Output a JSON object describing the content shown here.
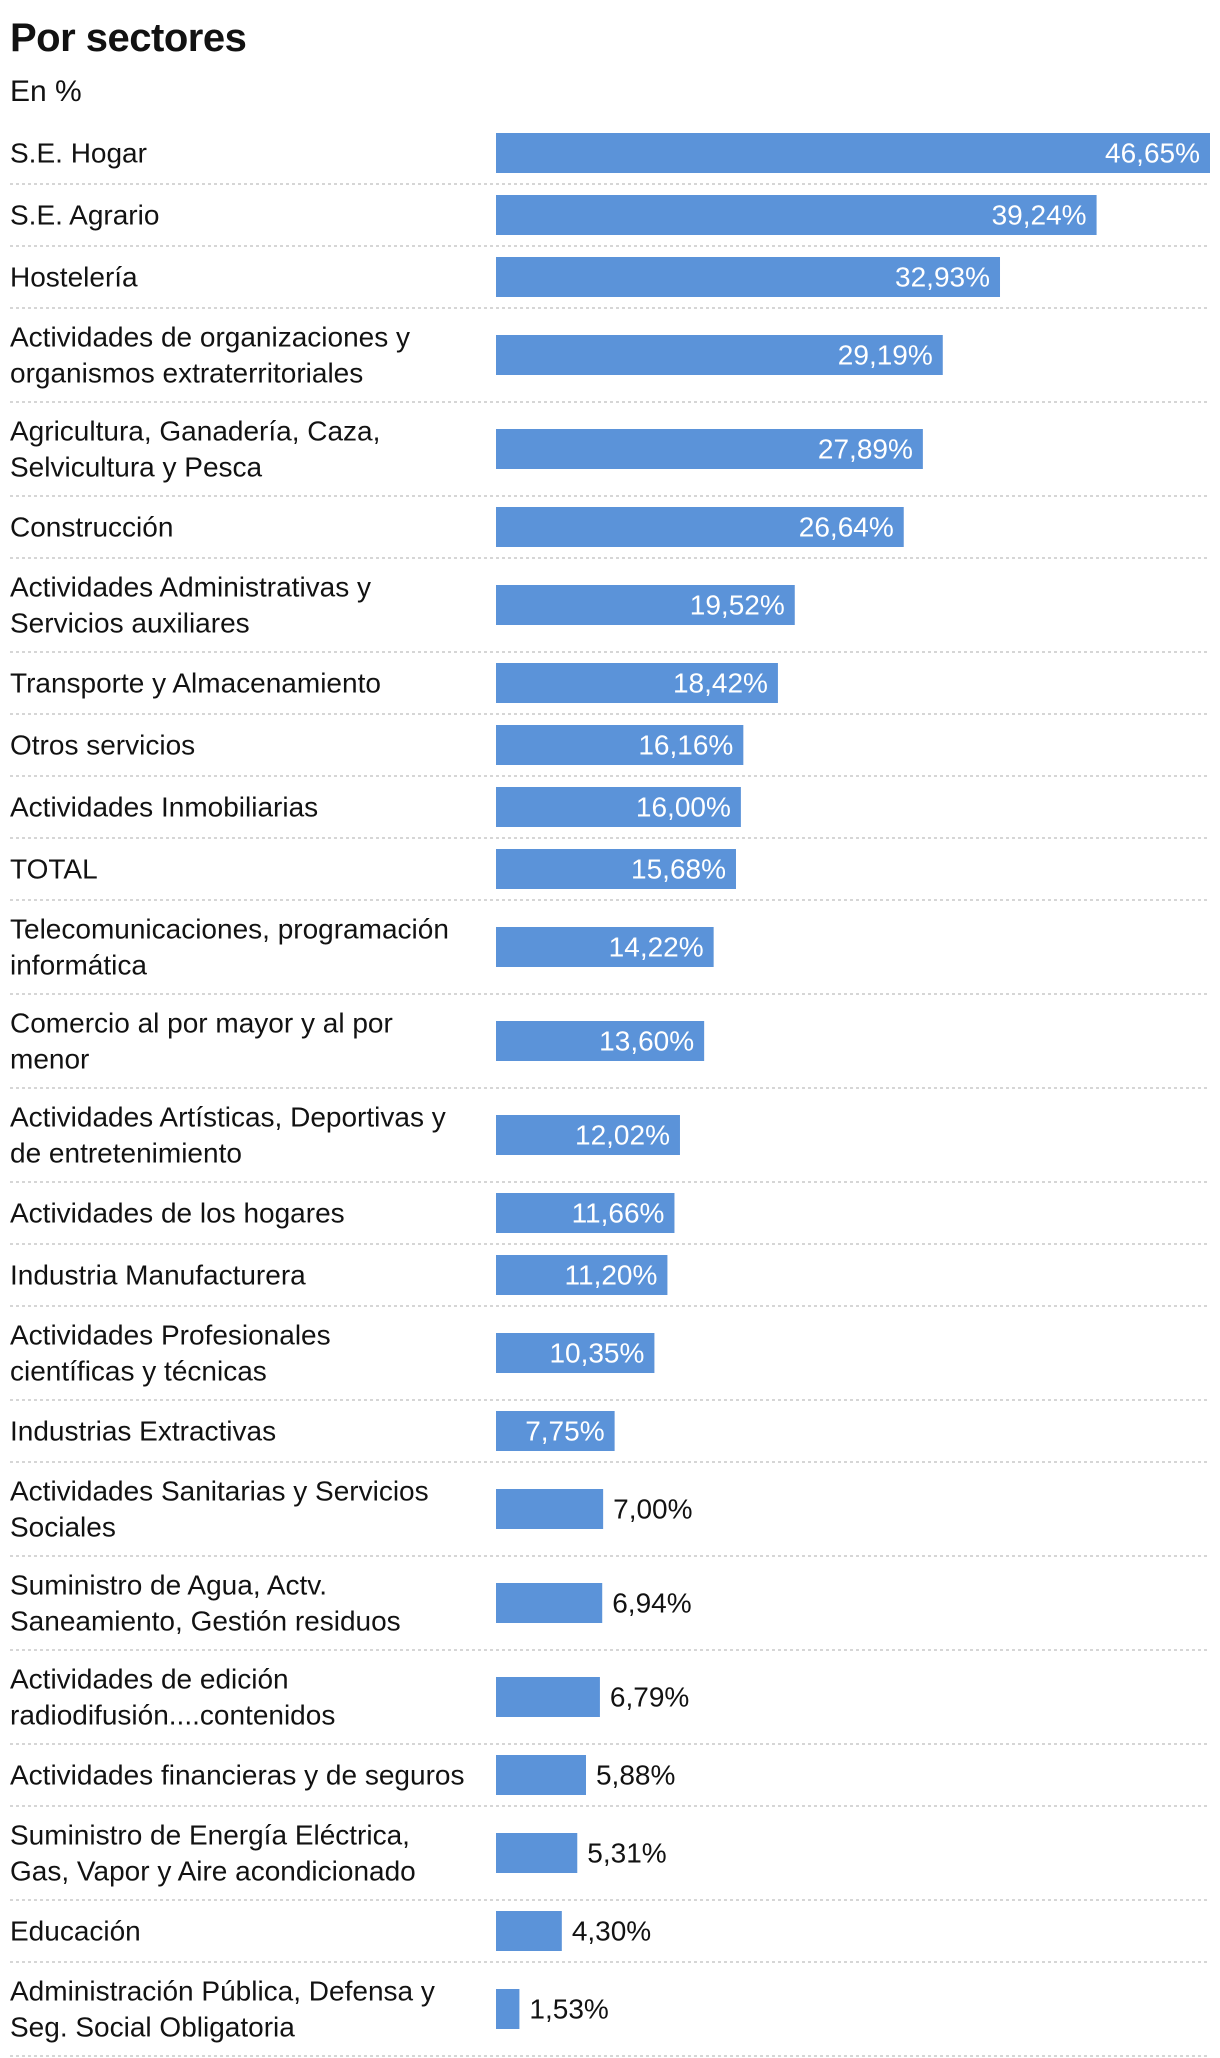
{
  "title": "Por sectores",
  "subtitle": "En %",
  "chart_data": {
    "type": "bar",
    "orientation": "horizontal",
    "title": "Por sectores",
    "subtitle": "En %",
    "xlim": [
      0,
      46.65
    ],
    "grid": false,
    "colors": {
      "bar": "#5b93d9",
      "label_inside": "#ffffff",
      "label_outside": "#121212",
      "separator": "#c8c8c8"
    },
    "rows": [
      {
        "lines": [
          "S.E. Hogar"
        ],
        "value": 46.65,
        "label": "46,65%"
      },
      {
        "lines": [
          "S.E. Agrario"
        ],
        "value": 39.24,
        "label": "39,24%"
      },
      {
        "lines": [
          "Hostelería"
        ],
        "value": 32.93,
        "label": "32,93%"
      },
      {
        "lines": [
          "Actividades de organizaciones y",
          "organismos extraterritoriales"
        ],
        "value": 29.19,
        "label": "29,19%"
      },
      {
        "lines": [
          "Agricultura, Ganadería, Caza,",
          "Selvicultura y Pesca"
        ],
        "value": 27.89,
        "label": "27,89%"
      },
      {
        "lines": [
          "Construcción"
        ],
        "value": 26.64,
        "label": "26,64%"
      },
      {
        "lines": [
          "Actividades Administrativas y",
          "Servicios auxiliares"
        ],
        "value": 19.52,
        "label": "19,52%"
      },
      {
        "lines": [
          "Transporte y Almacenamiento"
        ],
        "value": 18.42,
        "label": "18,42%"
      },
      {
        "lines": [
          "Otros servicios"
        ],
        "value": 16.16,
        "label": "16,16%"
      },
      {
        "lines": [
          "Actividades Inmobiliarias"
        ],
        "value": 16.0,
        "label": "16,00%"
      },
      {
        "lines": [
          "TOTAL"
        ],
        "value": 15.68,
        "label": "15,68%"
      },
      {
        "lines": [
          "Telecomunicaciones, programación",
          "informática"
        ],
        "value": 14.22,
        "label": "14,22%"
      },
      {
        "lines": [
          "Comercio al por mayor y al por",
          "menor"
        ],
        "value": 13.6,
        "label": "13,60%"
      },
      {
        "lines": [
          "Actividades Artísticas, Deportivas y",
          "de entretenimiento"
        ],
        "value": 12.02,
        "label": "12,02%"
      },
      {
        "lines": [
          "Actividades de los hogares"
        ],
        "value": 11.66,
        "label": "11,66%"
      },
      {
        "lines": [
          "Industria Manufacturera"
        ],
        "value": 11.2,
        "label": "11,20%"
      },
      {
        "lines": [
          "Actividades Profesionales",
          "científicas y técnicas"
        ],
        "value": 10.35,
        "label": "10,35%"
      },
      {
        "lines": [
          "Industrias Extractivas"
        ],
        "value": 7.75,
        "label": "7,75%"
      },
      {
        "lines": [
          "Actividades Sanitarias y Servicios",
          "Sociales"
        ],
        "value": 7.0,
        "label": "7,00%"
      },
      {
        "lines": [
          "Suministro de Agua, Actv.",
          "Saneamiento, Gestión residuos"
        ],
        "value": 6.94,
        "label": "6,94%"
      },
      {
        "lines": [
          "Actividades de edición",
          "radiodifusión....contenidos"
        ],
        "value": 6.79,
        "label": "6,79%"
      },
      {
        "lines": [
          "Actividades financieras y de seguros"
        ],
        "value": 5.88,
        "label": "5,88%"
      },
      {
        "lines": [
          "Suministro de Energía Eléctrica,",
          "Gas, Vapor y Aire acondicionado"
        ],
        "value": 5.31,
        "label": "5,31%"
      },
      {
        "lines": [
          "Educación"
        ],
        "value": 4.3,
        "label": "4,30%"
      },
      {
        "lines": [
          "Administración Pública, Defensa y",
          "Seg. Social Obligatoria"
        ],
        "value": 1.53,
        "label": "1,53%"
      }
    ]
  }
}
